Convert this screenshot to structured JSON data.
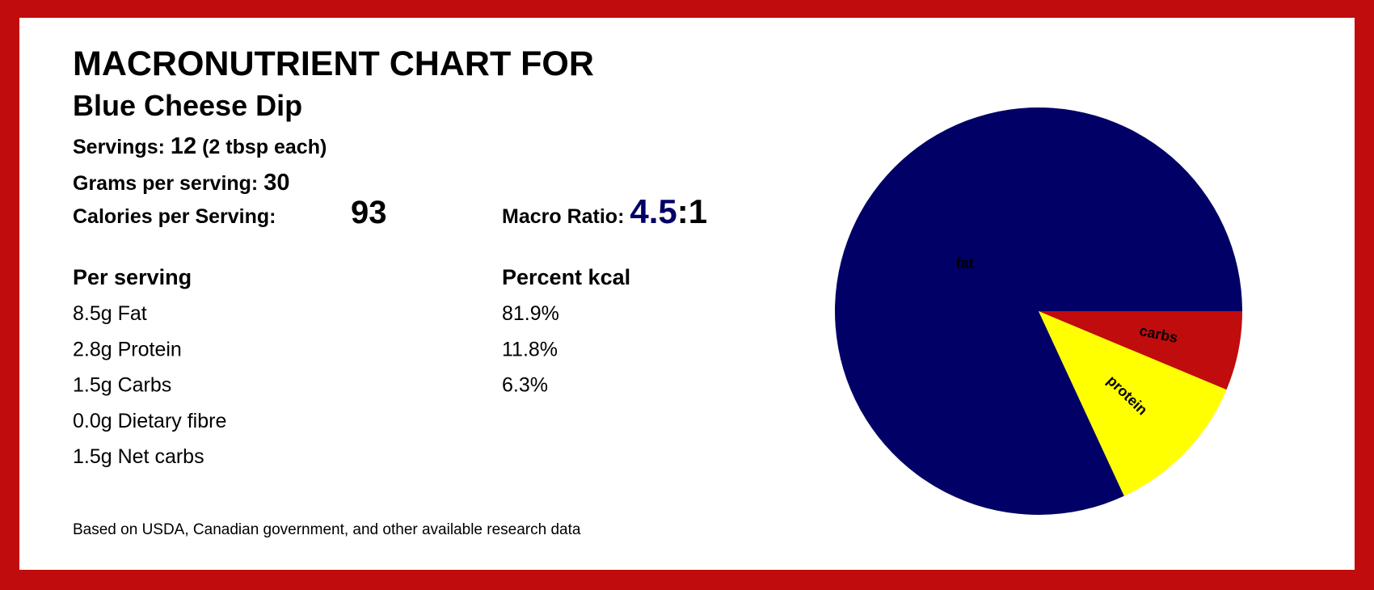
{
  "header": {
    "title": "MACRONUTRIENT CHART FOR",
    "subtitle": "Blue Cheese Dip"
  },
  "info": {
    "servings_label": "Servings:",
    "servings_value": "12",
    "servings_note": "(2 tbsp each)",
    "grams_label": "Grams per serving:",
    "grams_value": "30",
    "calories_label": "Calories per Serving:",
    "calories_value": "93",
    "ratio_label": "Macro Ratio:",
    "ratio_value": "4.5",
    "ratio_suffix": ":1"
  },
  "table": {
    "headers": [
      "Per serving",
      "Percent kcal"
    ],
    "rows": [
      [
        "8.5g Fat",
        "81.9%"
      ],
      [
        "2.8g Protein",
        "11.8%"
      ],
      [
        "1.5g Carbs",
        "6.3%"
      ],
      [
        "0.0g Dietary fibre",
        null
      ],
      [
        "1.5g Net carbs",
        null
      ]
    ]
  },
  "footer": "Based on USDA, Canadian government, and other available research data",
  "chart_data": {
    "type": "pie",
    "categories": [
      "fat",
      "protein",
      "carbs"
    ],
    "values": [
      81.9,
      11.8,
      6.3
    ],
    "colors": [
      "#000066",
      "#ffff00",
      "#c00c0c"
    ],
    "label_colors": [
      "#ffff00",
      "#000066",
      "#ffff00"
    ]
  }
}
